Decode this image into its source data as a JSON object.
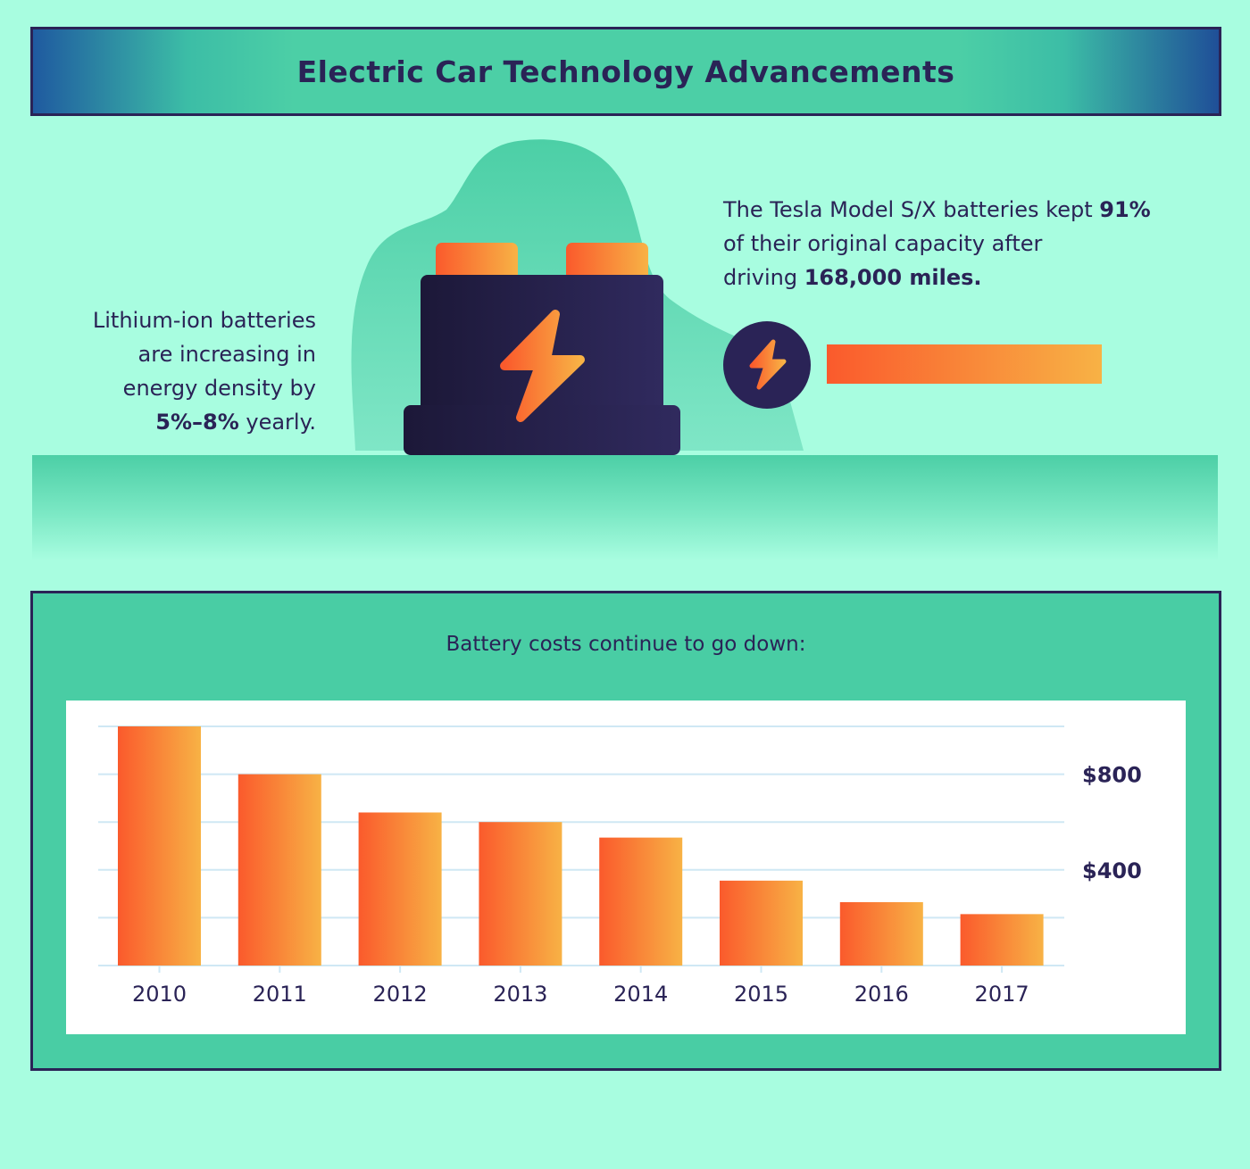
{
  "header": {
    "title": "Electric Car Technology Advancements"
  },
  "left_fact": {
    "line1": "Lithium-ion batteries",
    "line2": "are increasing in",
    "line3": "energy density by",
    "highlight": "5%–8%",
    "suffix": " yearly."
  },
  "right_fact": {
    "prefix": "The Tesla Model S/X batteries kept ",
    "capacity": "91%",
    "middle": "of their original capacity after",
    "driving": "driving ",
    "miles": "168,000 miles."
  },
  "capacity_bar": {
    "level": 0.91
  },
  "icons": {
    "battery": "battery-icon",
    "bolt": "lightning-bolt-icon",
    "badge": "charge-badge-icon"
  },
  "colors": {
    "background": "#a8fde0",
    "panel": "#49cda4",
    "navy": "#2a2356",
    "bar_start": "#fa5a2c",
    "bar_end": "#f8b245"
  },
  "chart_data": {
    "type": "bar",
    "title": "Battery costs continue to go down:",
    "categories": [
      "2010",
      "2011",
      "2012",
      "2013",
      "2014",
      "2015",
      "2016",
      "2017"
    ],
    "values": [
      1000,
      800,
      640,
      600,
      535,
      355,
      265,
      215
    ],
    "ylim": [
      0,
      1000
    ],
    "yticks": [
      400,
      800
    ],
    "ytick_labels": [
      "$400",
      "$800"
    ],
    "gridlines": [
      200,
      400,
      600,
      800,
      1000
    ],
    "xlabel": "",
    "ylabel": "",
    "grid": true,
    "y_axis_position": "right"
  }
}
